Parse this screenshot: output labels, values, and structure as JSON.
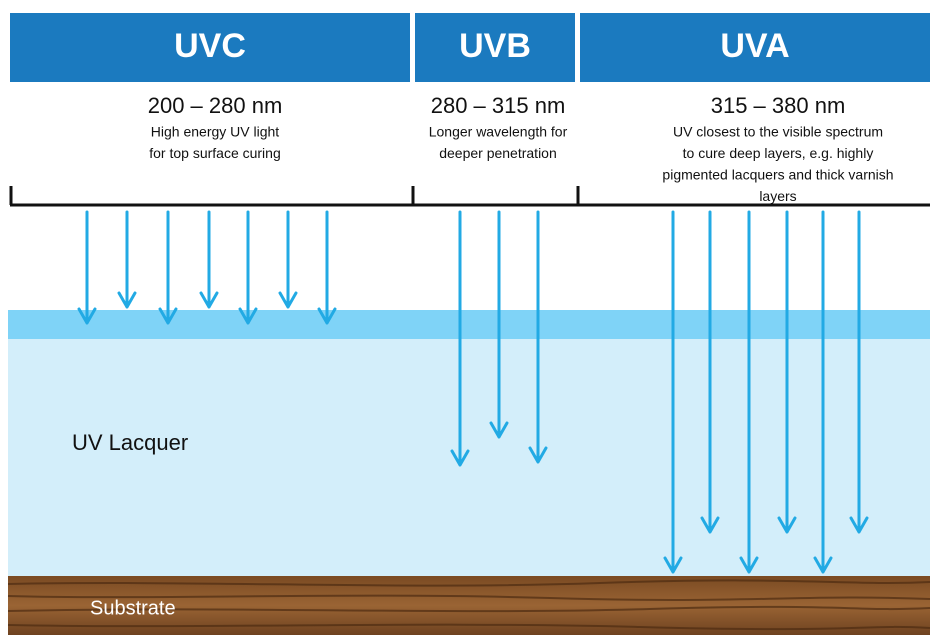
{
  "bands": [
    {
      "name": "UVC",
      "range": "200 – 280 nm",
      "description": [
        "High energy UV light",
        "for top surface curing"
      ]
    },
    {
      "name": "UVB",
      "range": "280 – 315 nm",
      "description": [
        "Longer wavelength for",
        "deeper penetration"
      ]
    },
    {
      "name": "UVA",
      "range": "315 – 380 nm",
      "description": [
        "UV closest to the visible  spectrum",
        "to cure deep layers, e.g. highly",
        "pigmented lacquers and thick varnish",
        "layers"
      ]
    }
  ],
  "layers": {
    "lacquer": "UV Lacquer",
    "substrate": "Substrate"
  }
}
